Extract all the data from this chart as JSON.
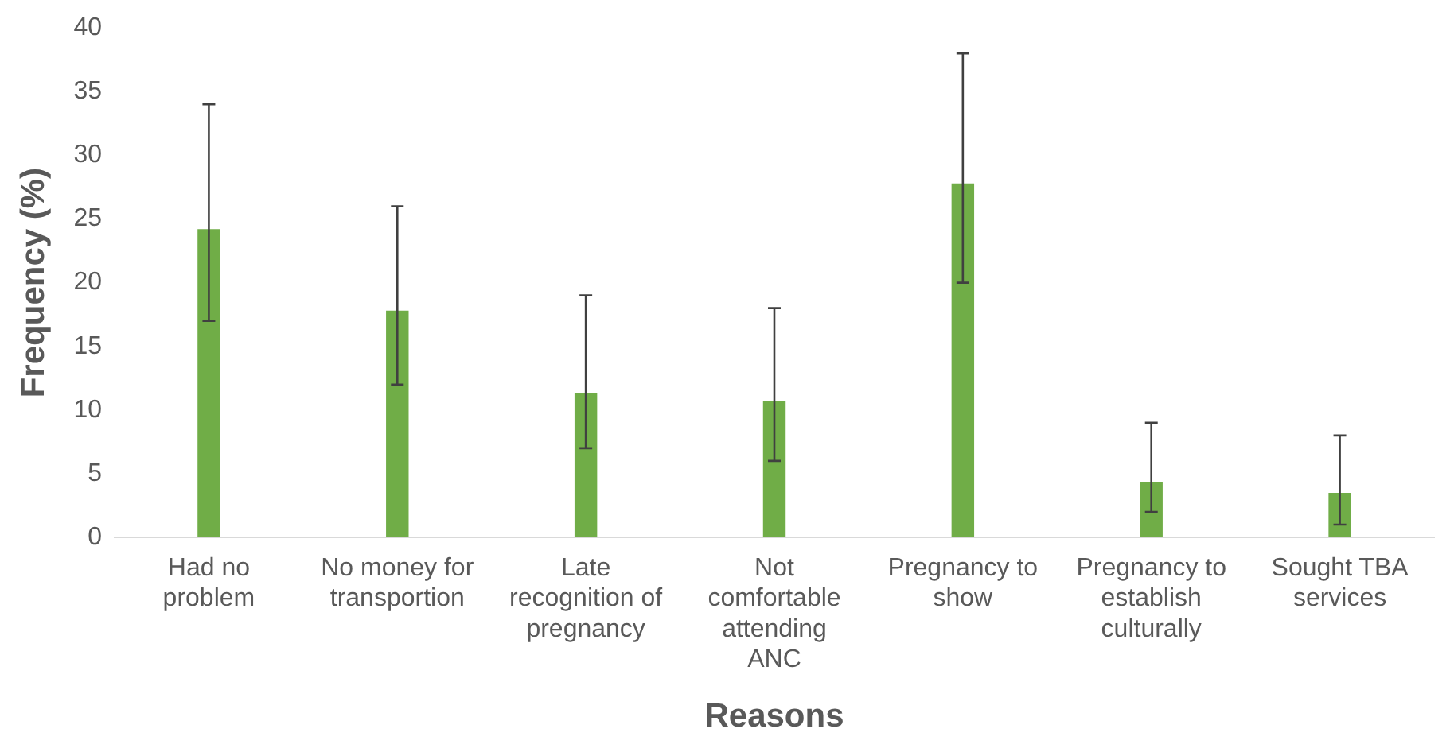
{
  "chart_data": {
    "type": "bar",
    "xlabel": "Reasons",
    "ylabel": "Frequency (%)",
    "categories": [
      "Had no problem",
      "No money for transportion",
      "Late recognition of pregnancy",
      "Not comfortable attending ANC",
      "Pregnancy to show",
      "Pregnancy to establish culturally",
      "Sought TBA services"
    ],
    "values": [
      24.2,
      17.8,
      11.3,
      10.7,
      27.8,
      4.3,
      3.5
    ],
    "errors": [
      [
        17,
        34
      ],
      [
        12,
        26
      ],
      [
        7,
        19
      ],
      [
        6,
        18
      ],
      [
        20,
        38
      ],
      [
        2,
        9
      ],
      [
        1,
        8
      ]
    ],
    "color": "#70ad47",
    "ylim": [
      0,
      40
    ],
    "yticks": [
      0,
      5,
      10,
      15,
      20,
      25,
      30,
      35,
      40
    ],
    "grid": false,
    "legend": false
  }
}
